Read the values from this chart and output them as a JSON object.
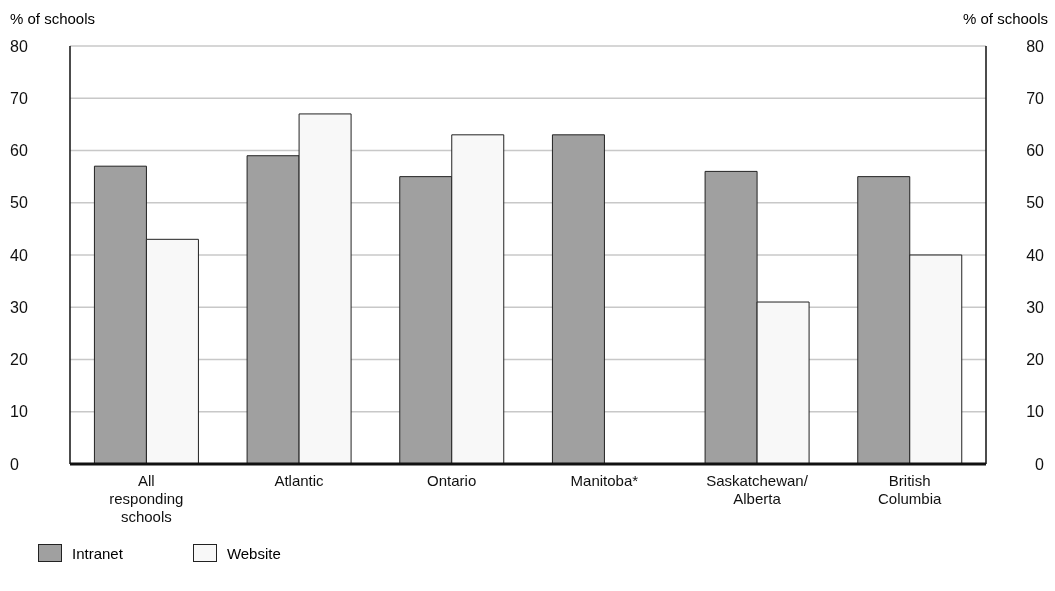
{
  "chart_data": {
    "type": "bar",
    "ylabel": "% of schools",
    "y2label": "% of schools",
    "categories": [
      "All responding schools",
      "Atlantic",
      "Ontario",
      "Manitoba*",
      "Saskatchewan/Alberta",
      "British Columbia"
    ],
    "series": [
      {
        "name": "Intranet",
        "color": "#a0a0a0",
        "values": [
          57,
          59,
          55,
          63,
          56,
          55
        ]
      },
      {
        "name": "Website",
        "color": "#f8f8f8",
        "values": [
          43,
          67,
          63,
          null,
          31,
          40
        ]
      }
    ],
    "ylim": [
      0,
      80
    ],
    "yticks": [
      0,
      10,
      20,
      30,
      40,
      50,
      60,
      70,
      80
    ],
    "y2lim": [
      0,
      80
    ],
    "y2ticks": [
      0,
      10,
      20,
      30,
      40,
      50,
      60,
      70,
      80
    ],
    "grid": "y",
    "legend": "bottom left"
  }
}
